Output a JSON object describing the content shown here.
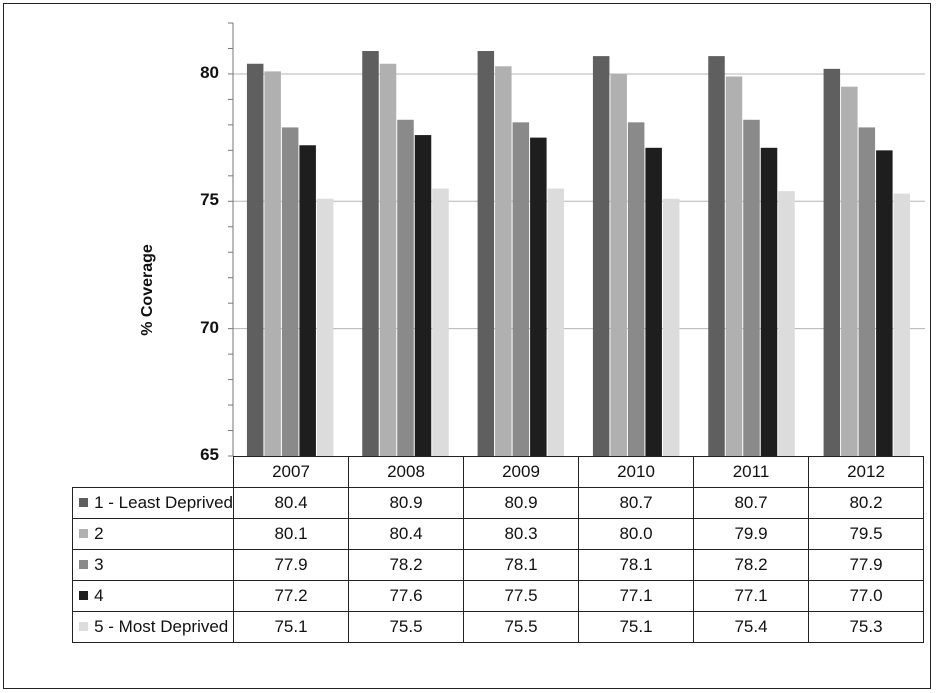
{
  "chart_data": {
    "type": "bar",
    "ylabel": "% Coverage",
    "ylim": [
      65,
      82
    ],
    "yticks": [
      65,
      70,
      75,
      80
    ],
    "grid": true,
    "legend": "data-table",
    "categories": [
      "2007",
      "2008",
      "2009",
      "2010",
      "2011",
      "2012"
    ],
    "series": [
      {
        "name": "1 - Least Deprived",
        "color": "#5f5f5f",
        "values": [
          80.4,
          80.9,
          80.9,
          80.7,
          80.7,
          80.2
        ]
      },
      {
        "name": "2",
        "color": "#b0b0b0",
        "values": [
          80.1,
          80.4,
          80.3,
          80.0,
          79.9,
          79.5
        ]
      },
      {
        "name": "3",
        "color": "#8a8a8a",
        "values": [
          77.9,
          78.2,
          78.1,
          78.1,
          78.2,
          77.9
        ]
      },
      {
        "name": "4",
        "color": "#1e1e1e",
        "values": [
          77.2,
          77.6,
          77.5,
          77.1,
          77.1,
          77.0
        ]
      },
      {
        "name": "5 - Most Deprived",
        "color": "#dcdcdc",
        "values": [
          75.1,
          75.5,
          75.5,
          75.1,
          75.4,
          75.3
        ]
      }
    ],
    "value_labels": [
      [
        "80.4",
        "80.9",
        "80.9",
        "80.7",
        "80.7",
        "80.2"
      ],
      [
        "80.1",
        "80.4",
        "80.3",
        "80.0",
        "79.9",
        "79.5"
      ],
      [
        "77.9",
        "78.2",
        "78.1",
        "78.1",
        "78.2",
        "77.9"
      ],
      [
        "77.2",
        "77.6",
        "77.5",
        "77.1",
        "77.1",
        "77.0"
      ],
      [
        "75.1",
        "75.5",
        "75.5",
        "75.1",
        "75.4",
        "75.3"
      ]
    ]
  }
}
